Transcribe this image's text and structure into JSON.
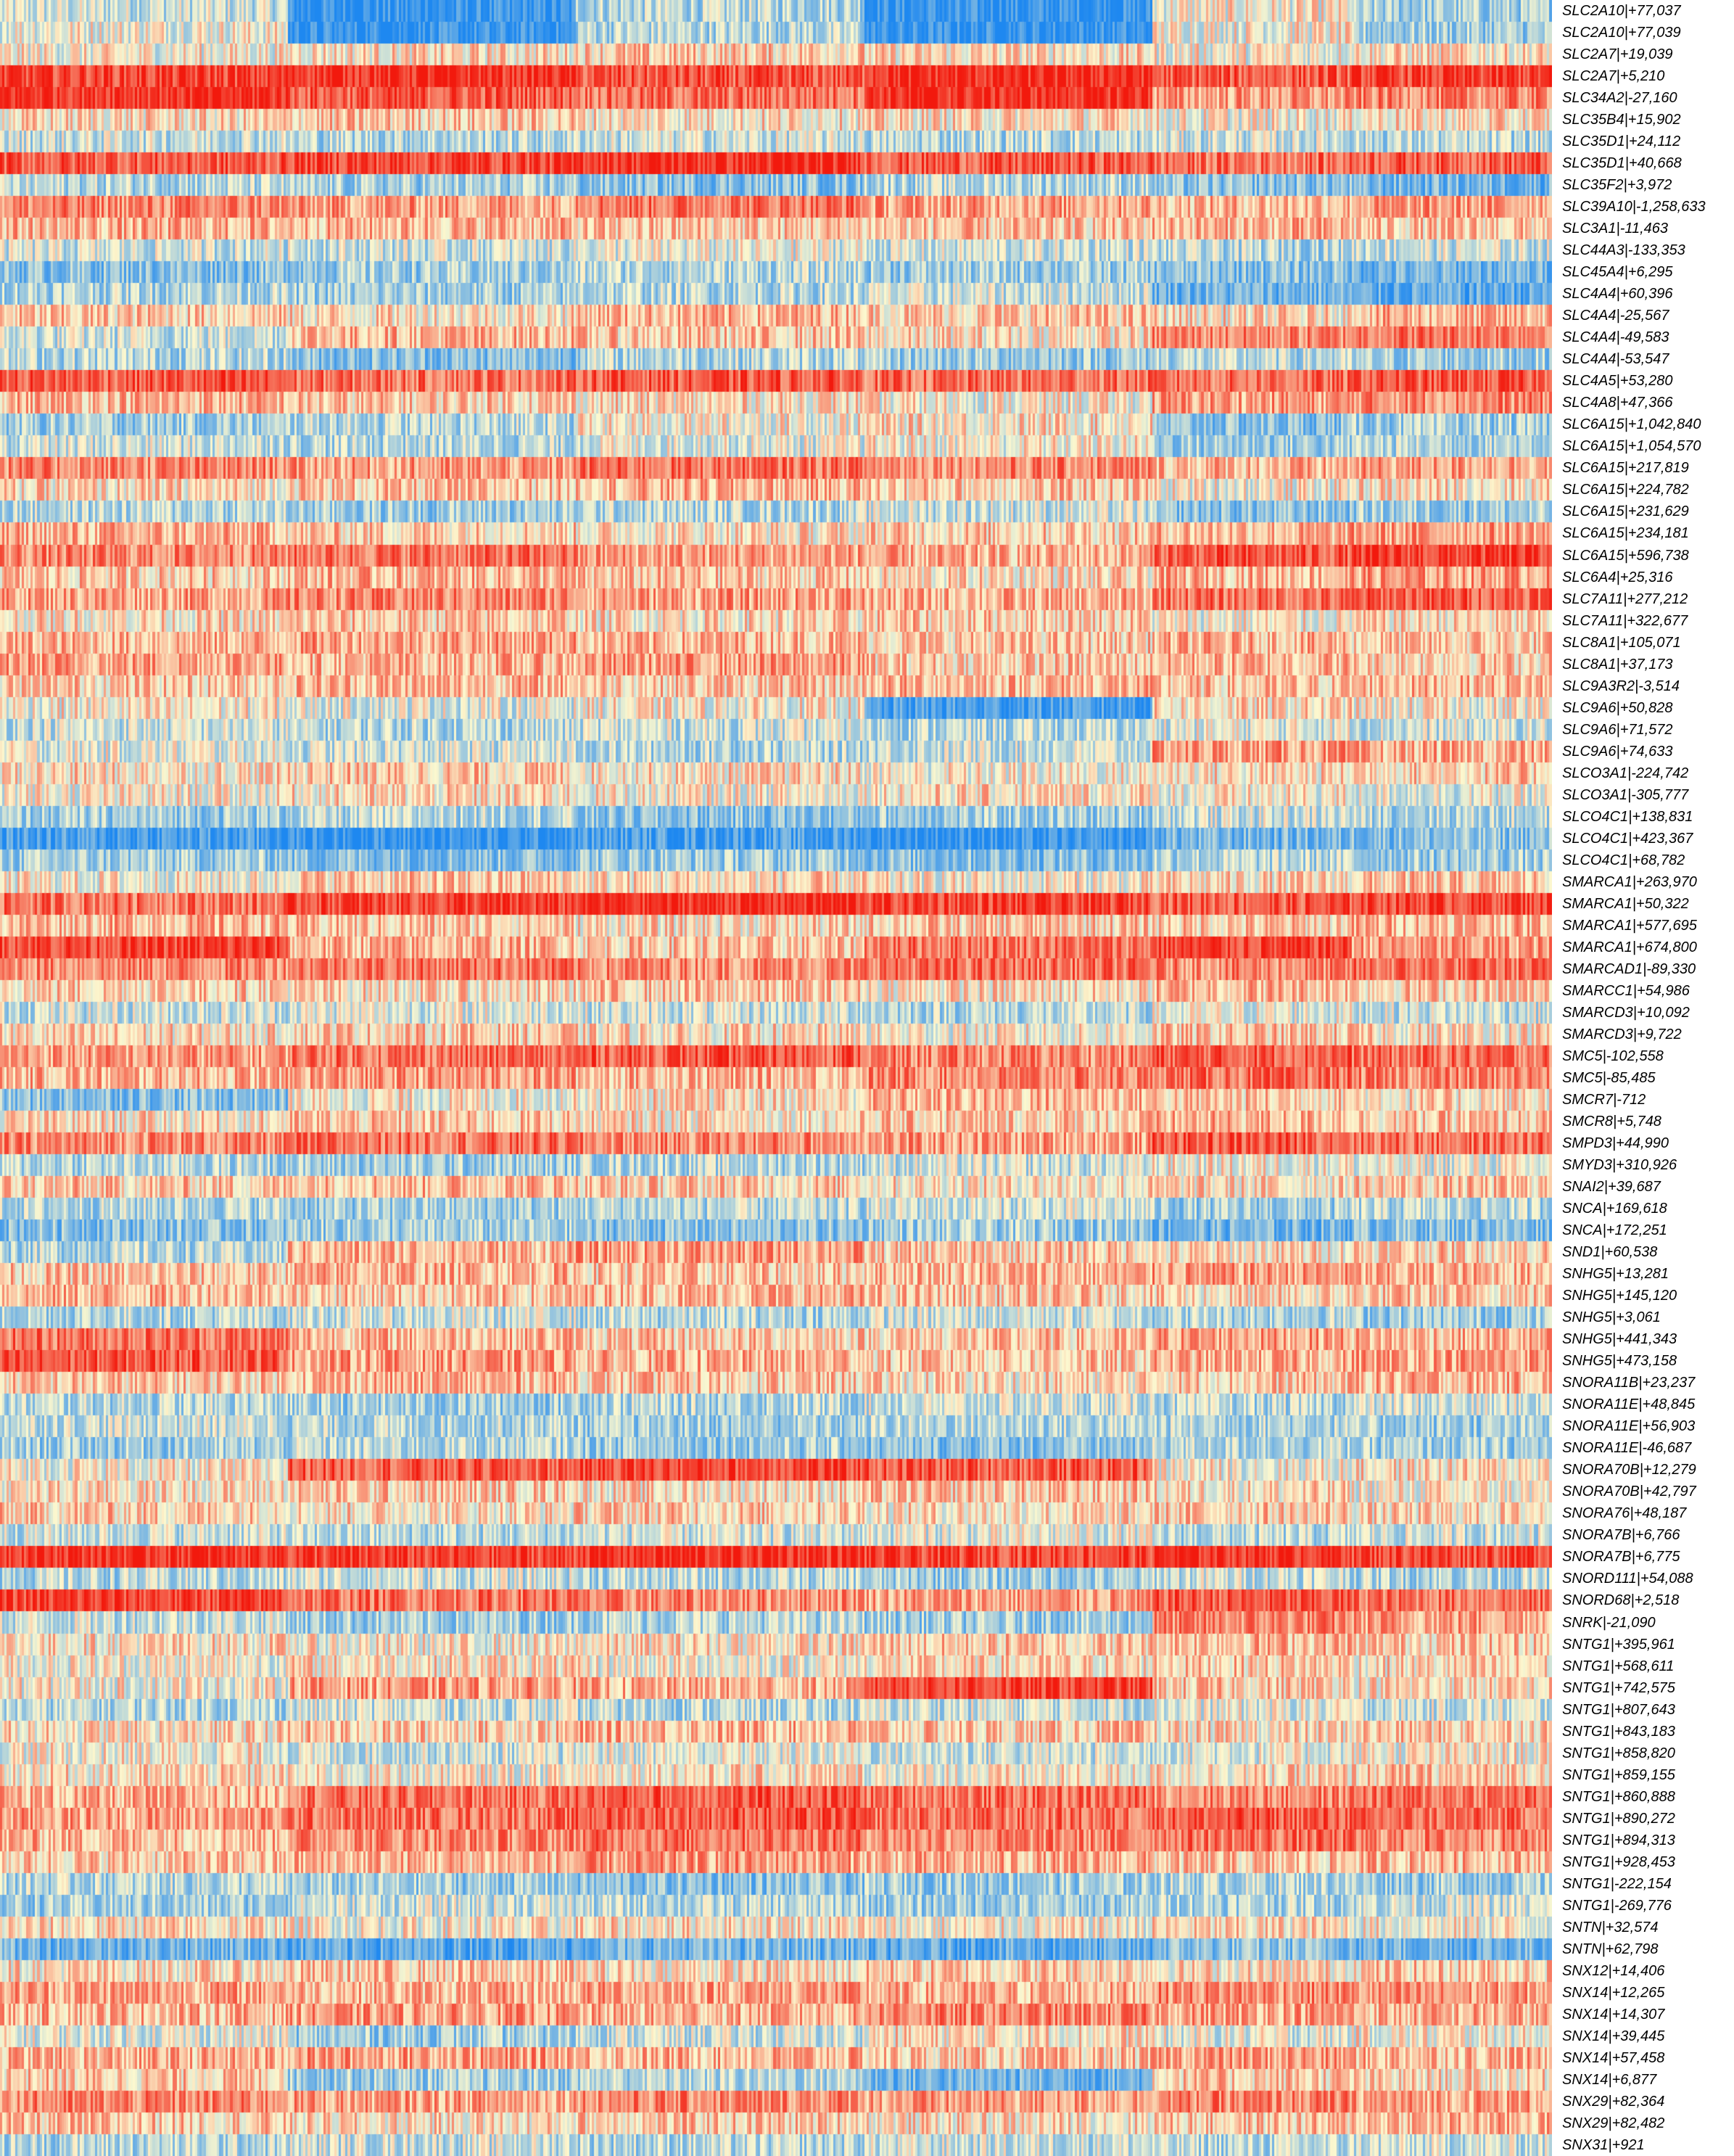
{
  "chart_data": {
    "type": "heatmap",
    "title": "",
    "xlabel": "",
    "ylabel": "",
    "legend": "none",
    "grid": false,
    "color_scale": {
      "low": "#1e88f0",
      "mid": "#fcf8cf",
      "high": "#f2190d"
    },
    "column_clusters": [
      {
        "name": "",
        "columns": 3,
        "approx_cells": 520
      },
      {
        "name": "",
        "columns": 1,
        "approx_cells": 180
      }
    ],
    "rows": [
      {
        "label": "SLC2A10|+77,037",
        "profile": [
          -0.2,
          -0.9,
          -0.3,
          -0.9,
          0.0,
          -0.4
        ]
      },
      {
        "label": "SLC2A10|+77,039",
        "profile": [
          0.0,
          -0.9,
          -0.3,
          -0.9,
          0.0,
          -0.4
        ]
      },
      {
        "label": "SLC2A7|+19,039",
        "profile": [
          0.0,
          0.1,
          0.2,
          0.1,
          0.0,
          0.1
        ]
      },
      {
        "label": "SLC2A7|+5,210",
        "profile": [
          0.8,
          0.9,
          0.7,
          0.9,
          0.7,
          0.8
        ]
      },
      {
        "label": "SLC34A2|-27,160",
        "profile": [
          0.9,
          0.7,
          0.6,
          0.9,
          0.4,
          0.5
        ]
      },
      {
        "label": "SLC35B4|+15,902",
        "profile": [
          0.1,
          0.2,
          0.1,
          0.1,
          0.0,
          0.1
        ]
      },
      {
        "label": "SLC35D1|+24,112",
        "profile": [
          -0.2,
          -0.3,
          -0.2,
          -0.3,
          -0.2,
          -0.3
        ]
      },
      {
        "label": "SLC35D1|+40,668",
        "profile": [
          0.7,
          0.8,
          0.9,
          0.7,
          0.6,
          0.7
        ]
      },
      {
        "label": "SLC35F2|+3,972",
        "profile": [
          -0.3,
          -0.4,
          -0.5,
          -0.3,
          -0.5,
          -0.6
        ]
      },
      {
        "label": "SLC39A10|-1,258,633",
        "profile": [
          0.5,
          0.4,
          0.6,
          0.4,
          0.3,
          0.4
        ]
      },
      {
        "label": "SLC3A1|-11,463",
        "profile": [
          0.3,
          0.3,
          0.2,
          0.2,
          0.3,
          0.2
        ]
      },
      {
        "label": "SLC44A3|-133,353",
        "profile": [
          -0.2,
          -0.2,
          -0.1,
          -0.2,
          -0.3,
          -0.2
        ]
      },
      {
        "label": "SLC45A4|+6,295",
        "profile": [
          -0.5,
          -0.4,
          -0.3,
          -0.4,
          -0.5,
          -0.6
        ]
      },
      {
        "label": "SLC4A4|+60,396",
        "profile": [
          -0.3,
          -0.4,
          -0.3,
          -0.2,
          -0.6,
          -0.7
        ]
      },
      {
        "label": "SLC4A4|-25,567",
        "profile": [
          0.2,
          0.1,
          0.3,
          0.2,
          0.1,
          0.3
        ]
      },
      {
        "label": "SLC4A4|-49,583",
        "profile": [
          -0.2,
          0.3,
          0.2,
          0.1,
          0.5,
          0.6
        ]
      },
      {
        "label": "SLC4A4|-53,547",
        "profile": [
          -0.3,
          -0.5,
          -0.3,
          -0.4,
          -0.3,
          -0.4
        ]
      },
      {
        "label": "SLC4A5|+53,280",
        "profile": [
          0.7,
          0.6,
          0.7,
          0.6,
          0.6,
          0.7
        ]
      },
      {
        "label": "SLC4A8|+47,366",
        "profile": [
          0.3,
          0.2,
          0.1,
          0.0,
          0.4,
          0.5
        ]
      },
      {
        "label": "SLC6A15|+1,042,840",
        "profile": [
          -0.4,
          -0.3,
          0.0,
          0.1,
          -0.5,
          -0.4
        ]
      },
      {
        "label": "SLC6A15|+1,054,570",
        "profile": [
          -0.2,
          -0.3,
          -0.1,
          0.0,
          -0.4,
          -0.3
        ]
      },
      {
        "label": "SLC6A15|+217,819",
        "profile": [
          0.5,
          0.4,
          0.6,
          0.5,
          0.3,
          0.4
        ]
      },
      {
        "label": "SLC6A15|+224,782",
        "profile": [
          0.1,
          0.2,
          0.3,
          0.2,
          0.0,
          0.1
        ]
      },
      {
        "label": "SLC6A15|+231,629",
        "profile": [
          -0.3,
          -0.4,
          -0.3,
          -0.2,
          -0.5,
          -0.4
        ]
      },
      {
        "label": "SLC6A15|+234,181",
        "profile": [
          0.3,
          0.2,
          0.1,
          0.2,
          0.3,
          0.4
        ]
      },
      {
        "label": "SLC6A15|+596,738",
        "profile": [
          0.5,
          0.6,
          0.4,
          0.3,
          0.7,
          0.8
        ]
      },
      {
        "label": "SLC6A4|+25,316",
        "profile": [
          0.2,
          0.3,
          0.2,
          0.1,
          0.3,
          0.4
        ]
      },
      {
        "label": "SLC7A11|+277,212",
        "profile": [
          0.4,
          0.5,
          0.4,
          0.3,
          0.6,
          0.7
        ]
      },
      {
        "label": "SLC7A11|+322,677",
        "profile": [
          0.1,
          0.2,
          0.1,
          0.2,
          0.0,
          0.1
        ]
      },
      {
        "label": "SLC8A1|+105,071",
        "profile": [
          0.3,
          0.4,
          0.3,
          0.2,
          0.3,
          0.2
        ]
      },
      {
        "label": "SLC8A1|+37,173",
        "profile": [
          0.4,
          0.3,
          0.4,
          0.2,
          0.3,
          0.2
        ]
      },
      {
        "label": "SLC9A3R2|-3,514",
        "profile": [
          0.2,
          0.3,
          0.2,
          0.3,
          0.2,
          0.3
        ]
      },
      {
        "label": "SLC9A6|+50,828",
        "profile": [
          0.0,
          -0.1,
          0.0,
          -0.8,
          0.1,
          0.0
        ]
      },
      {
        "label": "SLC9A6|+71,572",
        "profile": [
          -0.2,
          -0.3,
          -0.2,
          -0.3,
          -0.1,
          -0.2
        ]
      },
      {
        "label": "SLC9A6|+74,633",
        "profile": [
          -0.1,
          -0.2,
          -0.3,
          -0.2,
          0.4,
          0.3
        ]
      },
      {
        "label": "SLCO3A1|-224,742",
        "profile": [
          0.1,
          0.2,
          0.1,
          0.0,
          0.1,
          0.2
        ]
      },
      {
        "label": "SLCO3A1|-305,777",
        "profile": [
          0.0,
          0.1,
          0.0,
          0.1,
          0.0,
          -0.1
        ]
      },
      {
        "label": "SLCO4C1|+138,831",
        "profile": [
          -0.4,
          -0.3,
          -0.5,
          -0.4,
          -0.2,
          -0.3
        ]
      },
      {
        "label": "SLCO4C1|+423,367",
        "profile": [
          -0.8,
          -0.9,
          -0.8,
          -0.9,
          -0.6,
          -0.5
        ]
      },
      {
        "label": "SLCO4C1|+68,782",
        "profile": [
          -0.4,
          -0.5,
          -0.4,
          -0.5,
          -0.3,
          -0.4
        ]
      },
      {
        "label": "SMARCA1|+263,970",
        "profile": [
          0.0,
          0.2,
          0.1,
          0.0,
          0.1,
          0.2
        ]
      },
      {
        "label": "SMARCA1|+50,322",
        "profile": [
          0.6,
          0.8,
          0.9,
          0.8,
          0.7,
          0.8
        ]
      },
      {
        "label": "SMARCA1|+577,695",
        "profile": [
          0.3,
          0.2,
          0.1,
          0.2,
          0.2,
          0.3
        ]
      },
      {
        "label": "SMARCA1|+674,800",
        "profile": [
          0.8,
          0.3,
          0.2,
          0.6,
          0.8,
          0.4
        ]
      },
      {
        "label": "SMARCAD1|-89,330",
        "profile": [
          0.5,
          0.6,
          0.5,
          0.6,
          0.5,
          0.6
        ]
      },
      {
        "label": "SMARCC1|+54,986",
        "profile": [
          0.2,
          0.1,
          0.2,
          0.1,
          0.3,
          0.2
        ]
      },
      {
        "label": "SMARCD3|+10,092",
        "profile": [
          -0.2,
          -0.1,
          -0.2,
          -0.3,
          -0.1,
          -0.2
        ]
      },
      {
        "label": "SMARCD3|+9,722",
        "profile": [
          0.1,
          0.2,
          0.1,
          0.0,
          0.2,
          0.1
        ]
      },
      {
        "label": "SMC5|-102,558",
        "profile": [
          0.4,
          0.6,
          0.7,
          0.5,
          0.7,
          0.6
        ]
      },
      {
        "label": "SMC5|-85,485",
        "profile": [
          0.3,
          0.4,
          0.3,
          0.5,
          0.6,
          0.5
        ]
      },
      {
        "label": "SMCR7|-712",
        "profile": [
          -0.5,
          0.0,
          0.1,
          0.3,
          0.2,
          0.1
        ]
      },
      {
        "label": "SMCR8|+5,748",
        "profile": [
          0.1,
          0.2,
          0.1,
          0.2,
          0.3,
          0.2
        ]
      },
      {
        "label": "SMPD3|+44,990",
        "profile": [
          0.5,
          0.6,
          0.5,
          0.4,
          0.7,
          0.6
        ]
      },
      {
        "label": "SMYD3|+310,926",
        "profile": [
          -0.3,
          -0.4,
          -0.3,
          -0.2,
          0.0,
          -0.1
        ]
      },
      {
        "label": "SNAI2|+39,687",
        "profile": [
          0.2,
          0.3,
          0.2,
          0.1,
          0.1,
          0.2
        ]
      },
      {
        "label": "SNCA|+169,618",
        "profile": [
          -0.3,
          -0.4,
          -0.3,
          -0.2,
          -0.4,
          -0.3
        ]
      },
      {
        "label": "SNCA|+172,251",
        "profile": [
          -0.5,
          -0.4,
          -0.5,
          -0.4,
          -0.6,
          -0.5
        ]
      },
      {
        "label": "SND1|+60,538",
        "profile": [
          -0.3,
          0.3,
          0.4,
          0.2,
          0.1,
          0.2
        ]
      },
      {
        "label": "SNHG5|+13,281",
        "profile": [
          0.2,
          0.3,
          0.2,
          0.3,
          0.4,
          0.3
        ]
      },
      {
        "label": "SNHG5|+145,120",
        "profile": [
          0.3,
          0.2,
          0.3,
          0.2,
          0.1,
          0.2
        ]
      },
      {
        "label": "SNHG5|+3,061",
        "profile": [
          -0.3,
          -0.2,
          -0.3,
          -0.2,
          -0.3,
          -0.4
        ]
      },
      {
        "label": "SNHG5|+441,343",
        "profile": [
          0.6,
          0.3,
          0.2,
          0.2,
          0.4,
          0.3
        ]
      },
      {
        "label": "SNHG5|+473,158",
        "profile": [
          0.7,
          0.4,
          0.3,
          0.2,
          0.3,
          0.4
        ]
      },
      {
        "label": "SNORA11B|+23,237",
        "profile": [
          0.2,
          0.3,
          0.2,
          0.1,
          0.2,
          0.3
        ]
      },
      {
        "label": "SNORA11E|+48,845",
        "profile": [
          -0.3,
          -0.4,
          -0.3,
          -0.2,
          -0.3,
          -0.2
        ]
      },
      {
        "label": "SNORA11E|+56,903",
        "profile": [
          -0.2,
          -0.3,
          -0.4,
          -0.3,
          -0.3,
          -0.4
        ]
      },
      {
        "label": "SNORA11E|-46,687",
        "profile": [
          -0.4,
          -0.3,
          -0.4,
          -0.5,
          -0.3,
          -0.4
        ]
      },
      {
        "label": "SNORA70B|+12,279",
        "profile": [
          0.0,
          0.7,
          0.8,
          0.7,
          0.0,
          0.1
        ]
      },
      {
        "label": "SNORA70B|+42,797",
        "profile": [
          0.1,
          0.2,
          0.1,
          0.2,
          0.1,
          0.0
        ]
      },
      {
        "label": "SNORA76|+48,187",
        "profile": [
          0.2,
          0.1,
          0.2,
          0.1,
          0.2,
          0.1
        ]
      },
      {
        "label": "SNORA7B|+6,766",
        "profile": [
          -0.2,
          -0.3,
          -0.2,
          -0.1,
          -0.3,
          -0.2
        ]
      },
      {
        "label": "SNORA7B|+6,775",
        "profile": [
          0.9,
          0.8,
          0.9,
          0.8,
          0.9,
          0.8
        ]
      },
      {
        "label": "SNORD111|+54,088",
        "profile": [
          -0.3,
          -0.2,
          -0.3,
          -0.4,
          -0.2,
          -0.3
        ]
      },
      {
        "label": "SNORD68|+2,518",
        "profile": [
          0.8,
          0.6,
          0.5,
          0.4,
          0.7,
          0.6
        ]
      },
      {
        "label": "SNRK|-21,090",
        "profile": [
          -0.2,
          -0.4,
          -0.3,
          -0.4,
          0.5,
          0.4
        ]
      },
      {
        "label": "SNTG1|+395,961",
        "profile": [
          0.1,
          0.0,
          0.1,
          0.2,
          0.3,
          0.2
        ]
      },
      {
        "label": "SNTG1|+568,611",
        "profile": [
          0.0,
          0.1,
          0.0,
          0.1,
          0.2,
          0.1
        ]
      },
      {
        "label": "SNTG1|+742,575",
        "profile": [
          0.0,
          0.4,
          0.3,
          0.8,
          0.2,
          0.1
        ]
      },
      {
        "label": "SNTG1|+807,643",
        "profile": [
          -0.3,
          -0.2,
          -0.3,
          -0.2,
          -0.1,
          -0.2
        ]
      },
      {
        "label": "SNTG1|+843,183",
        "profile": [
          0.1,
          0.2,
          0.3,
          0.2,
          0.1,
          0.2
        ]
      },
      {
        "label": "SNTG1|+858,820",
        "profile": [
          0.0,
          -0.2,
          -0.1,
          -0.2,
          -0.1,
          0.0
        ]
      },
      {
        "label": "SNTG1|+859,155",
        "profile": [
          0.1,
          0.0,
          0.1,
          0.0,
          0.1,
          0.2
        ]
      },
      {
        "label": "SNTG1|+860,888",
        "profile": [
          0.3,
          0.6,
          0.7,
          0.6,
          0.5,
          0.6
        ]
      },
      {
        "label": "SNTG1|+890,272",
        "profile": [
          0.4,
          0.6,
          0.7,
          0.6,
          0.7,
          0.6
        ]
      },
      {
        "label": "SNTG1|+894,313",
        "profile": [
          0.3,
          0.5,
          0.6,
          0.5,
          0.6,
          0.5
        ]
      },
      {
        "label": "SNTG1|+928,453",
        "profile": [
          0.2,
          0.3,
          0.4,
          0.3,
          0.2,
          0.3
        ]
      },
      {
        "label": "SNTG1|-222,154",
        "profile": [
          -0.3,
          -0.4,
          -0.5,
          -0.4,
          -0.3,
          -0.4
        ]
      },
      {
        "label": "SNTG1|-269,776",
        "profile": [
          -0.4,
          -0.2,
          -0.3,
          -0.4,
          -0.3,
          -0.2
        ]
      },
      {
        "label": "SNTN|+32,574",
        "profile": [
          0.1,
          0.0,
          0.1,
          0.0,
          0.1,
          0.0
        ]
      },
      {
        "label": "SNTN|+62,798",
        "profile": [
          -0.6,
          -0.7,
          -0.6,
          -0.7,
          -0.5,
          -0.6
        ]
      },
      {
        "label": "SNX12|+14,406",
        "profile": [
          0.1,
          0.2,
          0.1,
          0.2,
          0.1,
          0.2
        ]
      },
      {
        "label": "SNX14|+12,265",
        "profile": [
          0.4,
          0.3,
          0.4,
          0.3,
          0.5,
          0.4
        ]
      },
      {
        "label": "SNX14|+14,307",
        "profile": [
          0.3,
          0.4,
          0.3,
          0.5,
          0.4,
          0.3
        ]
      },
      {
        "label": "SNX14|+39,445",
        "profile": [
          -0.1,
          -0.4,
          -0.2,
          0.1,
          -0.1,
          0.0
        ]
      },
      {
        "label": "SNX14|+57,458",
        "profile": [
          0.3,
          0.4,
          0.3,
          0.2,
          0.4,
          0.3
        ]
      },
      {
        "label": "SNX14|+6,877",
        "profile": [
          0.2,
          -0.4,
          -0.3,
          -0.6,
          0.2,
          0.1
        ]
      },
      {
        "label": "SNX29|+82,364",
        "profile": [
          0.5,
          0.4,
          0.5,
          0.4,
          0.5,
          0.4
        ]
      },
      {
        "label": "SNX29|+82,482",
        "profile": [
          0.2,
          0.1,
          0.2,
          0.1,
          0.2,
          0.3
        ]
      },
      {
        "label": "SNX31|+921",
        "profile": [
          -0.3,
          -0.2,
          -0.3,
          -0.2,
          -0.3,
          -0.2
        ]
      }
    ]
  }
}
